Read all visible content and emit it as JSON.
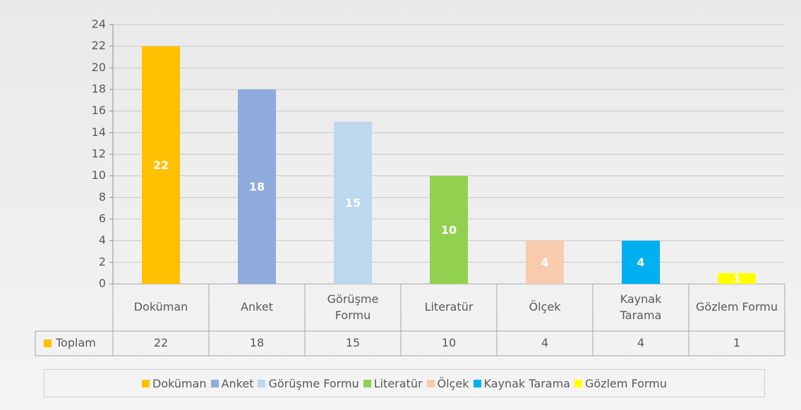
{
  "chart_data": {
    "type": "bar",
    "categories": [
      "Doküman",
      "Anket",
      "Görüşme Formu",
      "Literatür",
      "Ölçek",
      "Kaynak Tarama",
      "Gözlem Formu"
    ],
    "series": [
      {
        "name": "Toplam",
        "color": "#ffc000",
        "values": [
          22,
          18,
          15,
          10,
          4,
          4,
          1
        ],
        "colors": [
          "#ffc000",
          "#8faadc",
          "#bdd7ee",
          "#92d050",
          "#f8cbad",
          "#00b0f0",
          "#ffff00"
        ]
      }
    ],
    "ylim": [
      0,
      24
    ],
    "yticks": [
      0,
      2,
      4,
      6,
      8,
      10,
      12,
      14,
      16,
      18,
      20,
      22,
      24
    ],
    "grid": true
  }
}
